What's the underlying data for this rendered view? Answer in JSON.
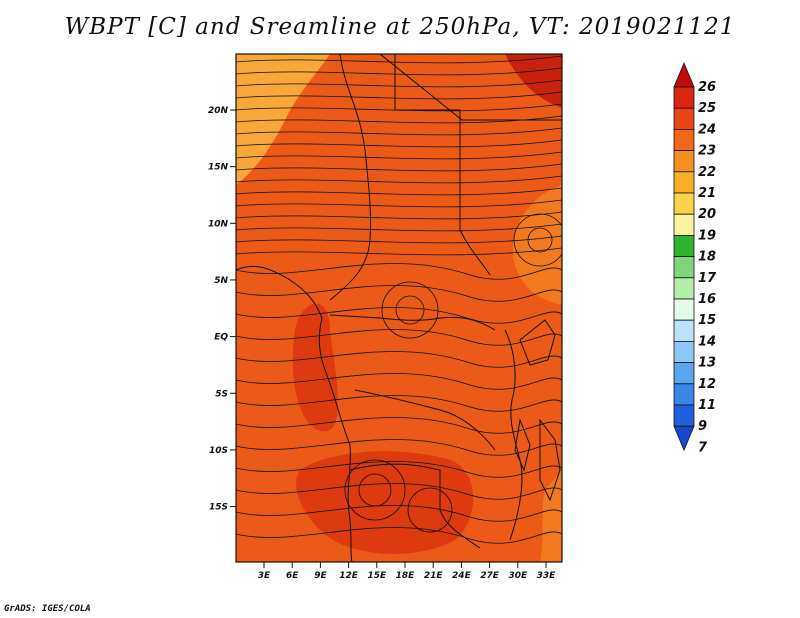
{
  "title": "WBPT [C] and Sreamline at 250hPa, VT: 2019021121",
  "footer": "GrADS: IGES/COLA",
  "map": {
    "lat_ticks": [
      "20N",
      "15N",
      "10N",
      "5N",
      "EQ",
      "5S",
      "10S",
      "15S"
    ],
    "lon_ticks": [
      "3E",
      "6E",
      "9E",
      "12E",
      "15E",
      "18E",
      "21E",
      "24E",
      "27E",
      "30E",
      "33E"
    ],
    "field_colors": {
      "orange_light": "#f9a63a",
      "orange": "#f27a1e",
      "orange_red": "#ec5a17",
      "red": "#dd3a10",
      "dark_red": "#c8220d"
    }
  },
  "colorbar": {
    "levels": [
      "26",
      "25",
      "24",
      "23",
      "22",
      "21",
      "20",
      "19",
      "18",
      "17",
      "16",
      "15",
      "14",
      "13",
      "12",
      "11",
      "9",
      "7"
    ],
    "colors": [
      "#c20a0a",
      "#d92512",
      "#ea4416",
      "#f06818",
      "#f5901c",
      "#f8ae26",
      "#fbd34a",
      "#fdf39e",
      "#30b430",
      "#7fd47c",
      "#b4ecac",
      "#e5fbe5",
      "#bce2fa",
      "#8cc8f3",
      "#5aa6ec",
      "#3a86e5",
      "#2060dc",
      "#1a46d0"
    ]
  }
}
